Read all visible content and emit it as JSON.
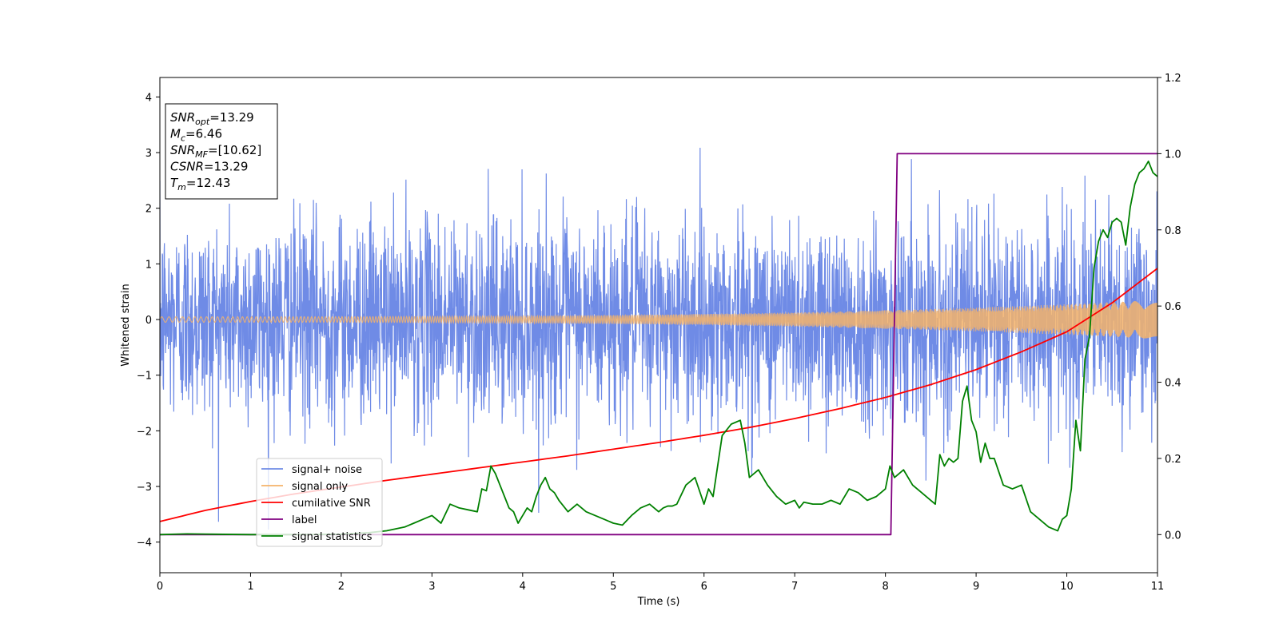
{
  "chart_data": {
    "type": "line",
    "xlabel": "Time (s)",
    "ylabel": "Whitened strain",
    "xlim": [
      0,
      11
    ],
    "ylim": [
      -4.55,
      4.35
    ],
    "y2lim": [
      -0.1,
      1.2
    ],
    "x_ticks": [
      0,
      1,
      2,
      3,
      4,
      5,
      6,
      7,
      8,
      9,
      10,
      11
    ],
    "y_ticks": [
      -4,
      -3,
      -2,
      -1,
      0,
      1,
      2,
      3,
      4
    ],
    "y_tick_labels": [
      "−4",
      "−3",
      "−2",
      "−1",
      "0",
      "1",
      "2",
      "3",
      "4"
    ],
    "y2_ticks": [
      0.0,
      0.2,
      0.4,
      0.6,
      0.8,
      1.0,
      1.2
    ],
    "y2_tick_labels": [
      "0.0",
      "0.2",
      "0.4",
      "0.6",
      "0.8",
      "1.0",
      "1.2"
    ],
    "legend_position": "lower-left",
    "info_box": {
      "position": "top-left",
      "lines": [
        {
          "sym": "SNR",
          "sub": "opt",
          "val": "=13.29"
        },
        {
          "sym": "M",
          "sub": "c",
          "val": "=6.46"
        },
        {
          "sym": "SNR",
          "sub": "MF",
          "val": "=[10.62]"
        },
        {
          "sym": "CSNR",
          "sub": "",
          "val": "=13.29"
        },
        {
          "sym": "T",
          "sub": "m",
          "val": "=12.43"
        }
      ]
    },
    "series": [
      {
        "name": "signal+ noise",
        "axis": "left",
        "color": "#6f8be6",
        "style": "noise",
        "std": 0.9,
        "envelope_range": [
          -4.15,
          3.95
        ]
      },
      {
        "name": "signal only",
        "axis": "left",
        "color": "#f5b36a",
        "style": "chirp",
        "amplitude_start": 0.05,
        "amplitude_end": 0.35
      },
      {
        "name": "cumilative SNR",
        "axis": "left",
        "color": "#ff0000",
        "x": [
          0,
          0.5,
          1,
          1.5,
          2,
          2.5,
          3,
          3.5,
          4,
          4.5,
          5,
          5.5,
          6,
          6.5,
          7,
          7.5,
          8,
          8.5,
          9,
          9.5,
          10,
          10.5,
          11
        ],
        "y": [
          -3.63,
          -3.43,
          -3.27,
          -3.13,
          -3.01,
          -2.89,
          -2.78,
          -2.67,
          -2.56,
          -2.45,
          -2.33,
          -2.21,
          -2.08,
          -1.94,
          -1.78,
          -1.6,
          -1.4,
          -1.17,
          -0.9,
          -0.58,
          -0.22,
          0.3,
          0.92
        ]
      },
      {
        "name": "label",
        "axis": "right",
        "color": "#800080",
        "x": [
          0,
          8.06,
          8.13,
          11
        ],
        "y": [
          0,
          0,
          1,
          1
        ]
      },
      {
        "name": "signal statistics",
        "axis": "right",
        "color": "#008000",
        "x": [
          0,
          0.3,
          0.6,
          1,
          1.5,
          2,
          2.3,
          2.5,
          2.7,
          2.8,
          2.9,
          3.0,
          3.1,
          3.2,
          3.3,
          3.4,
          3.5,
          3.55,
          3.6,
          3.65,
          3.7,
          3.75,
          3.8,
          3.85,
          3.9,
          3.95,
          4.0,
          4.05,
          4.1,
          4.15,
          4.2,
          4.25,
          4.3,
          4.35,
          4.4,
          4.5,
          4.6,
          4.7,
          4.8,
          4.9,
          5.0,
          5.1,
          5.2,
          5.3,
          5.4,
          5.5,
          5.55,
          5.6,
          5.65,
          5.7,
          5.8,
          5.9,
          6.0,
          6.05,
          6.1,
          6.2,
          6.3,
          6.4,
          6.45,
          6.5,
          6.6,
          6.7,
          6.8,
          6.9,
          7.0,
          7.05,
          7.1,
          7.2,
          7.3,
          7.4,
          7.5,
          7.6,
          7.7,
          7.8,
          7.9,
          8.0,
          8.05,
          8.1,
          8.2,
          8.3,
          8.4,
          8.5,
          8.55,
          8.6,
          8.65,
          8.7,
          8.75,
          8.8,
          8.85,
          8.9,
          8.95,
          9.0,
          9.05,
          9.1,
          9.15,
          9.2,
          9.3,
          9.4,
          9.5,
          9.6,
          9.8,
          9.9,
          9.95,
          10.0,
          10.05,
          10.1,
          10.15,
          10.2,
          10.25,
          10.3,
          10.35,
          10.4,
          10.45,
          10.5,
          10.55,
          10.6,
          10.65,
          10.7,
          10.75,
          10.8,
          10.85,
          10.9,
          10.95,
          11.0
        ],
        "y": [
          0.0,
          0.002,
          0.001,
          0.0,
          0.0,
          0.001,
          0.005,
          0.01,
          0.02,
          0.03,
          0.04,
          0.05,
          0.03,
          0.08,
          0.07,
          0.065,
          0.06,
          0.12,
          0.115,
          0.18,
          0.16,
          0.13,
          0.1,
          0.07,
          0.06,
          0.03,
          0.05,
          0.07,
          0.06,
          0.1,
          0.13,
          0.15,
          0.12,
          0.11,
          0.09,
          0.06,
          0.08,
          0.06,
          0.05,
          0.04,
          0.03,
          0.025,
          0.05,
          0.07,
          0.08,
          0.06,
          0.07,
          0.075,
          0.075,
          0.08,
          0.13,
          0.15,
          0.08,
          0.12,
          0.1,
          0.26,
          0.29,
          0.3,
          0.24,
          0.15,
          0.17,
          0.13,
          0.1,
          0.08,
          0.09,
          0.07,
          0.085,
          0.08,
          0.08,
          0.09,
          0.08,
          0.12,
          0.11,
          0.09,
          0.1,
          0.12,
          0.18,
          0.15,
          0.17,
          0.13,
          0.11,
          0.09,
          0.08,
          0.21,
          0.18,
          0.2,
          0.19,
          0.2,
          0.35,
          0.39,
          0.3,
          0.27,
          0.19,
          0.24,
          0.2,
          0.2,
          0.13,
          0.12,
          0.13,
          0.06,
          0.02,
          0.01,
          0.04,
          0.05,
          0.12,
          0.3,
          0.22,
          0.46,
          0.52,
          0.7,
          0.77,
          0.8,
          0.78,
          0.82,
          0.83,
          0.82,
          0.76,
          0.86,
          0.92,
          0.95,
          0.96,
          0.98,
          0.95,
          0.94
        ]
      }
    ]
  }
}
